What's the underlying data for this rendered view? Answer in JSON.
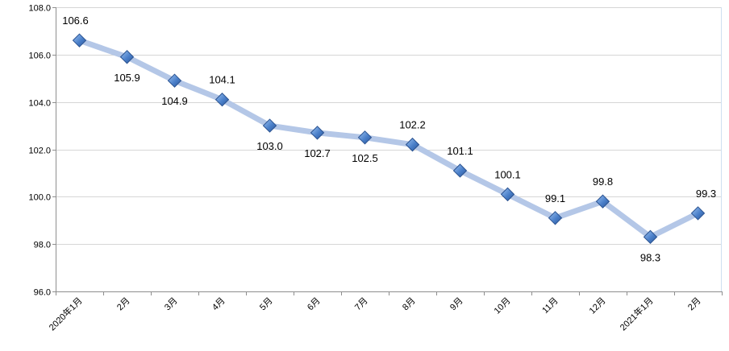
{
  "chart_data": {
    "type": "line",
    "title": "",
    "xlabel": "",
    "ylabel": "",
    "categories": [
      "2020年1月",
      "2月",
      "3月",
      "4月",
      "5月",
      "6月",
      "7月",
      "8月",
      "9月",
      "10月",
      "11月",
      "12月",
      "2021年1月",
      "2月"
    ],
    "series": [
      {
        "values": [
          106.6,
          105.9,
          104.9,
          104.1,
          103.0,
          102.7,
          102.5,
          102.2,
          101.1,
          100.1,
          99.1,
          99.8,
          98.3,
          99.3
        ],
        "data_labels": [
          "106.6",
          "105.9",
          "104.9",
          "104.1",
          "103.0",
          "102.7",
          "102.5",
          "102.2",
          "101.1",
          "100.1",
          "99.1",
          "99.8",
          "98.3",
          "99.3"
        ],
        "line_color": "#b4c7e7",
        "marker_color": "#4472c4"
      }
    ],
    "ylim": [
      96.0,
      108.0
    ],
    "yticks": [
      "96.0",
      "98.0",
      "100.0",
      "102.0",
      "104.0",
      "106.0",
      "108.0"
    ],
    "grid": true,
    "legend": "none"
  }
}
